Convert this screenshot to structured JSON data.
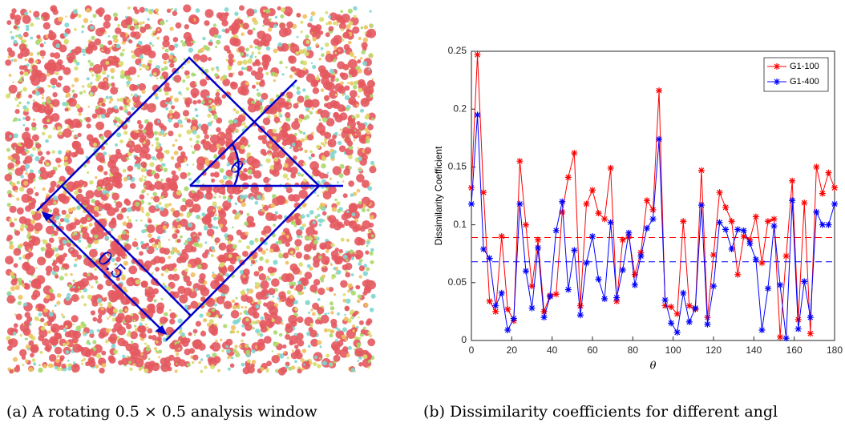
{
  "left_panel": {
    "angle_label": "θ",
    "size_label": "0.5",
    "caption": "(a) A rotating 0.5 × 0.5 analysis window"
  },
  "chart_data": {
    "type": "line",
    "x": [
      0,
      3,
      6,
      9,
      12,
      15,
      18,
      21,
      24,
      27,
      30,
      33,
      36,
      39,
      42,
      45,
      48,
      51,
      54,
      57,
      60,
      63,
      66,
      69,
      72,
      75,
      78,
      81,
      84,
      87,
      90,
      93,
      96,
      99,
      102,
      105,
      108,
      111,
      114,
      117,
      120,
      123,
      126,
      129,
      132,
      135,
      138,
      141,
      144,
      147,
      150,
      153,
      156,
      159,
      162,
      165,
      168,
      171,
      174,
      177,
      180
    ],
    "series": [
      {
        "name": "G1-100",
        "color": "#ff0000",
        "values": [
          0.132,
          0.247,
          0.128,
          0.034,
          0.025,
          0.09,
          0.027,
          0.017,
          0.155,
          0.1,
          0.047,
          0.087,
          0.025,
          0.039,
          0.04,
          0.111,
          0.141,
          0.162,
          0.03,
          0.118,
          0.13,
          0.11,
          0.105,
          0.149,
          0.034,
          0.087,
          0.09,
          0.057,
          0.076,
          0.121,
          0.113,
          0.216,
          0.03,
          0.029,
          0.023,
          0.103,
          0.03,
          0.027,
          0.147,
          0.02,
          0.074,
          0.128,
          0.115,
          0.103,
          0.057,
          0.09,
          0.087,
          0.107,
          0.067,
          0.103,
          0.105,
          0.003,
          0.073,
          0.138,
          0.018,
          0.119,
          0.006,
          0.15,
          0.127,
          0.145,
          0.132
        ],
        "mean": 0.089
      },
      {
        "name": "G1-400",
        "color": "#0000ff",
        "values": [
          0.118,
          0.195,
          0.079,
          0.071,
          0.03,
          0.041,
          0.009,
          0.019,
          0.118,
          0.06,
          0.028,
          0.08,
          0.02,
          0.038,
          0.095,
          0.12,
          0.044,
          0.078,
          0.022,
          0.067,
          0.09,
          0.053,
          0.036,
          0.102,
          0.037,
          0.061,
          0.093,
          0.048,
          0.073,
          0.097,
          0.105,
          0.174,
          0.035,
          0.015,
          0.007,
          0.041,
          0.016,
          0.028,
          0.117,
          0.014,
          0.047,
          0.102,
          0.096,
          0.079,
          0.096,
          0.095,
          0.084,
          0.07,
          0.009,
          0.045,
          0.099,
          0.048,
          0.002,
          0.121,
          0.01,
          0.051,
          0.02,
          0.111,
          0.1,
          0.1,
          0.118
        ],
        "mean": 0.068
      }
    ],
    "xlabel": "θ",
    "ylabel": "Dissimilarity Coefficient",
    "xlim": [
      0,
      180
    ],
    "xticks": [
      0,
      20,
      40,
      60,
      80,
      100,
      120,
      140,
      160,
      180
    ],
    "ylim": [
      0,
      0.25
    ],
    "yticks": [
      0,
      0.05,
      0.1,
      0.15,
      0.2,
      0.25
    ],
    "legend": "northeast",
    "caption": "(b) Dissimilarity coefficients for different angl"
  }
}
